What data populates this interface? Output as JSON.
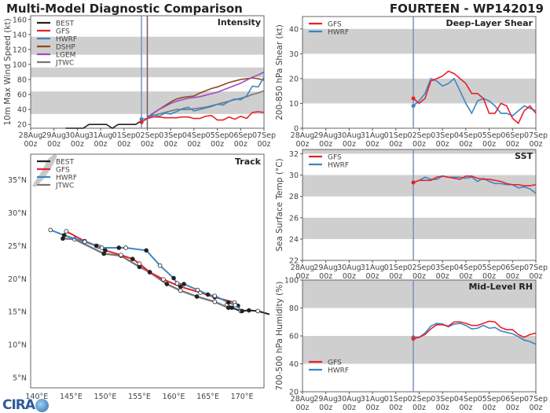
{
  "header": {
    "title": "Multi-Model Diagnostic Comparison",
    "storm": "FOURTEEN - WP142019"
  },
  "colors": {
    "BEST": "#222222",
    "GFS": "#e8212a",
    "HWRF": "#3a86c6",
    "DSHP": "#8b4a24",
    "LGEM": "#a04bc0",
    "JTWC": "#777777",
    "band": "#cfcfcf",
    "init_line": "#7b90bd",
    "dshp_init_line": "#7a5a5a"
  },
  "time_ticks": [
    [
      "28Aug",
      "00z"
    ],
    [
      "29Aug",
      "00z"
    ],
    [
      "30Aug",
      "00z"
    ],
    [
      "31Aug",
      "00z"
    ],
    [
      "01Sep",
      "00z"
    ],
    [
      "02Sep",
      "00z"
    ],
    [
      "03Sep",
      "00z"
    ],
    [
      "04Sep",
      "00z"
    ],
    [
      "05Sep",
      "00z"
    ],
    [
      "06Sep",
      "00z"
    ],
    [
      "07Sep",
      "00z"
    ]
  ],
  "chart_data": [
    {
      "type": "line",
      "panel_label": "Intensity",
      "ylabel": "10m Max Wind Speed (kt)",
      "xlim": [
        "2019-08-28T00Z",
        "2019-09-07T00Z"
      ],
      "ylim": [
        15,
        165
      ],
      "yticks": [
        20,
        40,
        60,
        80,
        100,
        120,
        140,
        160
      ],
      "bands": [
        [
          34,
          64
        ],
        [
          83,
          96
        ],
        [
          113,
          137
        ]
      ],
      "init_lines": [
        "2019-09-01T18Z",
        "2019-09-02T00Z"
      ],
      "legend": [
        "BEST",
        "GFS",
        "HWRF",
        "DSHP",
        "LGEM",
        "JTWC"
      ],
      "legend_position": "top-left",
      "best": {
        "x": [
          "2019-08-29T12Z",
          "2019-08-29T18Z",
          "2019-08-30T00Z",
          "2019-08-30T06Z",
          "2019-08-30T12Z",
          "2019-08-30T18Z",
          "2019-08-31T00Z",
          "2019-08-31T06Z",
          "2019-08-31T12Z",
          "2019-08-31T18Z",
          "2019-09-01T00Z",
          "2019-09-01T06Z",
          "2019-09-01T12Z",
          "2019-09-01T18Z"
        ],
        "values": [
          15,
          15,
          15,
          15,
          20,
          20,
          20,
          20,
          15,
          20,
          20,
          20,
          20,
          25
        ]
      },
      "series": [
        {
          "name": "GFS",
          "values": [
            23,
            28,
            30,
            30,
            29,
            29,
            29,
            30,
            30,
            28,
            28,
            31,
            32,
            26,
            26,
            30,
            27,
            31,
            28,
            36,
            37,
            36
          ]
        },
        {
          "name": "HWRF",
          "values": [
            27,
            28,
            33,
            31,
            35,
            34,
            37,
            41,
            43,
            38,
            40,
            42,
            44,
            47,
            46,
            51,
            54,
            53,
            58,
            71,
            70,
            83
          ]
        },
        {
          "name": "DSHP",
          "values": [
            null,
            30,
            35,
            40,
            45,
            50,
            54,
            56,
            57,
            58,
            62,
            65,
            68,
            70,
            73,
            76,
            78,
            80,
            81,
            82,
            81,
            79
          ]
        },
        {
          "name": "LGEM",
          "values": [
            null,
            30,
            35,
            40,
            44,
            48,
            51,
            53,
            55,
            56,
            57,
            59,
            61,
            63,
            66,
            69,
            72,
            75,
            79,
            83,
            86,
            90
          ]
        },
        {
          "name": "JTWC",
          "values": [
            null,
            30,
            32,
            34,
            36,
            38,
            40,
            40,
            40,
            41,
            42,
            43,
            45,
            47,
            49,
            51,
            53,
            55,
            57,
            60,
            62,
            65
          ]
        }
      ]
    },
    {
      "type": "line",
      "panel_label": "Deep-Layer Shear",
      "ylabel": "200-850 hPa Shear (kt)",
      "xlim": [
        "2019-08-28T00Z",
        "2019-09-07T00Z"
      ],
      "ylim": [
        0,
        45
      ],
      "yticks": [
        0,
        10,
        20,
        30,
        40
      ],
      "bands": [
        [
          10,
          20
        ],
        [
          30,
          40
        ]
      ],
      "init_lines": [
        "2019-09-01T18Z"
      ],
      "legend": [
        "GFS",
        "HWRF"
      ],
      "legend_position": "top-left",
      "series": [
        {
          "name": "GFS",
          "values": [
            12,
            10,
            12,
            19,
            20,
            21,
            23,
            22,
            20,
            18,
            14,
            14,
            12,
            6,
            6,
            10,
            9,
            4,
            2,
            7,
            9,
            6
          ]
        },
        {
          "name": "HWRF",
          "values": [
            9,
            11,
            14,
            20,
            19,
            17,
            18,
            20,
            15,
            10,
            6,
            11,
            12,
            11,
            9,
            6,
            6,
            5,
            7,
            9,
            8,
            7
          ]
        }
      ]
    },
    {
      "type": "line",
      "panel_label": "SST",
      "ylabel": "Sea Surface Temp (°C)",
      "xlim": [
        "2019-08-28T00Z",
        "2019-09-07T00Z"
      ],
      "ylim": [
        22,
        32.4
      ],
      "yticks": [
        22,
        24,
        26,
        28,
        30,
        32
      ],
      "bands": [
        [
          24,
          26
        ],
        [
          28,
          30
        ],
        [
          32,
          32.4
        ]
      ],
      "init_lines": [
        "2019-09-01T18Z"
      ],
      "legend": [
        "GFS",
        "HWRF"
      ],
      "legend_position": "top-left",
      "series": [
        {
          "name": "GFS",
          "values": [
            29.3,
            29.5,
            29.5,
            29.5,
            29.8,
            29.9,
            29.8,
            29.7,
            29.6,
            29.9,
            29.9,
            29.7,
            29.6,
            29.6,
            29.5,
            29.4,
            29.2,
            29.1,
            29.1,
            29.0,
            29.0,
            29.1
          ]
        },
        {
          "name": "HWRF",
          "values": [
            29.3,
            29.5,
            29.8,
            29.6,
            29.6,
            29.9,
            29.8,
            29.8,
            29.8,
            29.7,
            29.8,
            29.4,
            29.7,
            29.4,
            29.2,
            29.2,
            29.1,
            29.1,
            28.8,
            28.9,
            28.7,
            28.3
          ]
        }
      ]
    },
    {
      "type": "line",
      "panel_label": "Mid-Level RH",
      "ylabel": "700-500 hPa Humidity (%)",
      "xlim": [
        "2019-08-28T00Z",
        "2019-09-07T00Z"
      ],
      "ylim": [
        20,
        100
      ],
      "yticks": [
        20,
        40,
        60,
        80,
        100
      ],
      "bands": [
        [
          40,
          60
        ],
        [
          80,
          100
        ]
      ],
      "init_lines": [
        "2019-09-01T18Z"
      ],
      "legend": [
        "GFS",
        "HWRF"
      ],
      "legend_position": "bottom-left",
      "series": [
        {
          "name": "GFS",
          "values": [
            58,
            59,
            61,
            65,
            68,
            68,
            67,
            70,
            70,
            69,
            67.5,
            67.5,
            69,
            70.5,
            70,
            66,
            64.5,
            64.5,
            61,
            59,
            61,
            62
          ]
        },
        {
          "name": "HWRF",
          "values": [
            59,
            59,
            62,
            67,
            69,
            68.5,
            66.5,
            68.5,
            69,
            67.5,
            65,
            65.5,
            67.5,
            65.5,
            66,
            63.5,
            62.5,
            61.5,
            59.5,
            57,
            56,
            54
          ]
        }
      ]
    },
    {
      "type": "scatter",
      "panel_label": "Track",
      "xlim": [
        139.1,
        173.2
      ],
      "ylim": [
        3.45,
        38.9
      ],
      "xticks": [
        "140°E",
        "145°E",
        "150°E",
        "155°E",
        "160°E",
        "165°E",
        "170°E"
      ],
      "yticks": [
        "5°N",
        "10°N",
        "15°N",
        "20°N",
        "25°N",
        "30°N",
        "35°N"
      ],
      "legend": [
        "BEST",
        "GFS",
        "HWRF",
        "JTWC"
      ],
      "legend_position": "top-left",
      "tracks": [
        {
          "name": "BEST",
          "lonlat": [
            [
              174,
              14.6
            ],
            [
              172.3,
              15.1
            ],
            [
              171,
              15.2
            ],
            [
              169.8,
              15.1
            ],
            [
              168.5,
              15.6
            ],
            [
              167.8,
              16.1
            ]
          ]
        },
        {
          "name": "JTWC",
          "lonlat": [
            [
              168,
              15.6
            ],
            [
              166,
              16.5
            ],
            [
              163.4,
              17.3
            ],
            [
              161,
              18.2
            ],
            [
              159,
              19.2
            ],
            [
              156.5,
              21
            ],
            [
              155,
              21.8
            ],
            [
              152.3,
              23.5
            ],
            [
              149.8,
              23.8
            ],
            [
              145.5,
              26
            ],
            [
              143.8,
              26.1
            ]
          ]
        },
        {
          "name": "GFS",
          "lonlat": [
            [
              169.4,
              15.9
            ],
            [
              168.9,
              16.4
            ],
            [
              166,
              17.2
            ],
            [
              163.9,
              17.9
            ],
            [
              161,
              18.8
            ],
            [
              158.5,
              19.9
            ],
            [
              156.5,
              21
            ],
            [
              155,
              22.3
            ],
            [
              154,
              23
            ],
            [
              152.3,
              23.6
            ],
            [
              150,
              24.3
            ],
            [
              149,
              24.9
            ],
            [
              147,
              25.7
            ],
            [
              144.3,
              27.2
            ]
          ]
        },
        {
          "name": "HWRF",
          "lonlat": [
            [
              170,
              15.1
            ],
            [
              169,
              16
            ],
            [
              168,
              16.4
            ],
            [
              166,
              17.4
            ],
            [
              165,
              17.6
            ],
            [
              163.5,
              18.3
            ],
            [
              161.5,
              19.2
            ],
            [
              160.5,
              19.3
            ],
            [
              160,
              20.1
            ],
            [
              158,
              22
            ],
            [
              156,
              24.3
            ],
            [
              153,
              24.7
            ],
            [
              152,
              24.7
            ],
            [
              149.5,
              24.7
            ],
            [
              148.7,
              25
            ],
            [
              147,
              25.6
            ],
            [
              144,
              26.6
            ],
            [
              142,
              27.4
            ]
          ]
        }
      ]
    }
  ],
  "forecast_times": [
    "2019-09-01T18Z",
    "2019-09-02T00Z",
    "2019-09-02T06Z",
    "2019-09-02T12Z",
    "2019-09-02T18Z",
    "2019-09-03T00Z",
    "2019-09-03T06Z",
    "2019-09-03T12Z",
    "2019-09-03T18Z",
    "2019-09-04T00Z",
    "2019-09-04T06Z",
    "2019-09-04T12Z",
    "2019-09-04T18Z",
    "2019-09-05T00Z",
    "2019-09-05T06Z",
    "2019-09-05T12Z",
    "2019-09-05T18Z",
    "2019-09-06T00Z",
    "2019-09-06T06Z",
    "2019-09-06T12Z",
    "2019-09-06T18Z",
    "2019-09-07T00Z"
  ],
  "logo": {
    "text": "CIRA"
  }
}
